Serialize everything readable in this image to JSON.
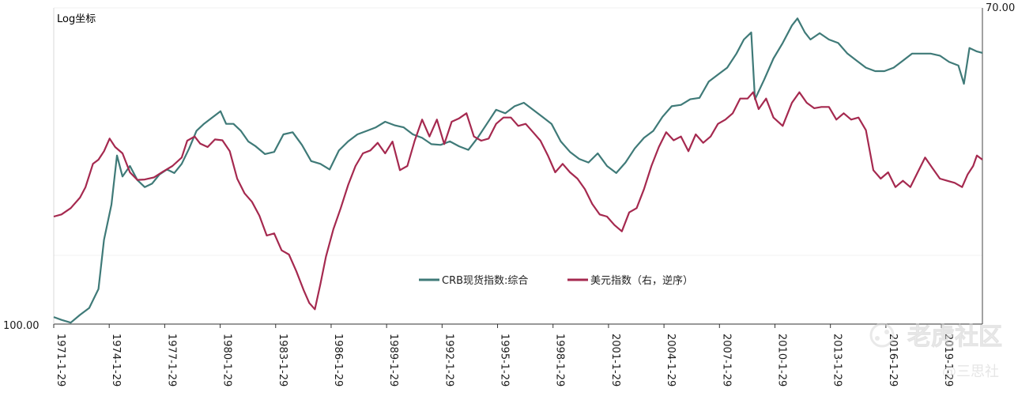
{
  "chart_data": {
    "type": "line",
    "scale_note": "Log坐标",
    "y_left": {
      "tick_labels": [
        "100.00"
      ]
    },
    "y_right": {
      "tick_labels": [
        "70.00"
      ],
      "inverted": true
    },
    "x_ticks": [
      "1971-1-29",
      "1974-1-29",
      "1977-1-29",
      "1980-1-29",
      "1983-1-29",
      "1986-1-29",
      "1989-1-29",
      "1992-1-29",
      "1995-1-29",
      "1998-1-29",
      "2001-1-29",
      "2004-1-29",
      "2007-1-29",
      "2010-1-29",
      "2013-1-29",
      "2016-1-29",
      "2019-1-29"
    ],
    "grid": true,
    "legend_position": "bottom-center",
    "series": [
      {
        "name": "CRB现货指数:综合",
        "axis": "left",
        "color": "#3f7a78",
        "x": [
          1971.08,
          1971.5,
          1972.0,
          1972.5,
          1973.0,
          1973.5,
          1973.8,
          1974.2,
          1974.5,
          1974.8,
          1975.2,
          1975.6,
          1976.0,
          1976.4,
          1976.8,
          1977.2,
          1977.6,
          1978.0,
          1978.4,
          1978.8,
          1979.2,
          1979.6,
          1980.1,
          1980.4,
          1980.8,
          1981.2,
          1981.6,
          1982.0,
          1982.5,
          1983.0,
          1983.5,
          1984.0,
          1984.5,
          1985.0,
          1985.5,
          1986.0,
          1986.5,
          1987.0,
          1987.5,
          1988.0,
          1988.5,
          1989.0,
          1989.5,
          1990.0,
          1990.5,
          1991.0,
          1991.5,
          1992.0,
          1992.5,
          1993.0,
          1993.5,
          1994.0,
          1994.5,
          1995.0,
          1995.5,
          1996.0,
          1996.5,
          1997.0,
          1997.5,
          1998.0,
          1998.5,
          1999.0,
          1999.5,
          2000.0,
          2000.5,
          2001.0,
          2001.5,
          2002.0,
          2002.5,
          2003.0,
          2003.5,
          2004.0,
          2004.5,
          2005.0,
          2005.5,
          2006.0,
          2006.5,
          2007.0,
          2007.5,
          2008.0,
          2008.4,
          2008.8,
          2009.0,
          2009.5,
          2010.0,
          2010.5,
          2011.0,
          2011.3,
          2011.7,
          2012.0,
          2012.5,
          2013.0,
          2013.5,
          2014.0,
          2014.5,
          2015.0,
          2015.5,
          2016.0,
          2016.5,
          2017.0,
          2017.5,
          2018.0,
          2018.5,
          2019.0,
          2019.5,
          2020.0,
          2020.3,
          2020.6,
          2021.0,
          2021.3
        ],
        "values": [
          101,
          100.6,
          100.2,
          101.3,
          102.3,
          105,
          112,
          117,
          124,
          121,
          122.5,
          120.5,
          119.5,
          120,
          121.3,
          122,
          121.5,
          122.8,
          125,
          127.5,
          128.5,
          129.3,
          130.3,
          128.5,
          128.5,
          127.5,
          126,
          125.3,
          124.2,
          124.5,
          127,
          127.3,
          125.5,
          123.2,
          122.8,
          122,
          124.7,
          126,
          127,
          127.5,
          128,
          128.8,
          128.3,
          128,
          127,
          126.5,
          125.6,
          125.5,
          126,
          125.3,
          124.8,
          126.5,
          128.5,
          130.5,
          130,
          131,
          131.5,
          130.5,
          129.5,
          128.5,
          126,
          124.5,
          123.5,
          123,
          124.3,
          122.5,
          121.5,
          123,
          125,
          126.5,
          127.5,
          129.5,
          131,
          131.2,
          132,
          132.2,
          134.5,
          135.5,
          136.5,
          138.5,
          140.5,
          141.5,
          132,
          134.8,
          137.8,
          140,
          142.5,
          143.5,
          141.5,
          140.5,
          141.4,
          140.5,
          140,
          138.5,
          137.5,
          136.5,
          136,
          136,
          136.5,
          137.5,
          138.5,
          138.5,
          138.5,
          138.2,
          137.3,
          136.8,
          134.2,
          139.3,
          138.8,
          138.6
        ]
      },
      {
        "name": "美元指数（右，逆序）",
        "axis": "right",
        "color": "#a5294f",
        "x": [
          1971.08,
          1971.5,
          1972.0,
          1972.5,
          1972.8,
          1973.2,
          1973.5,
          1973.8,
          1974.1,
          1974.4,
          1974.8,
          1975.2,
          1975.6,
          1976.0,
          1976.5,
          1977.0,
          1977.5,
          1978.0,
          1978.3,
          1978.7,
          1979.0,
          1979.4,
          1979.8,
          1980.2,
          1980.6,
          1981.0,
          1981.4,
          1981.8,
          1982.2,
          1982.6,
          1983.0,
          1983.4,
          1983.8,
          1984.2,
          1984.6,
          1984.9,
          1985.2,
          1985.5,
          1985.8,
          1986.2,
          1986.6,
          1987.0,
          1987.4,
          1987.8,
          1988.2,
          1988.6,
          1989.0,
          1989.4,
          1989.8,
          1990.2,
          1990.6,
          1991.0,
          1991.4,
          1991.8,
          1992.2,
          1992.6,
          1993.0,
          1993.4,
          1993.8,
          1994.2,
          1994.6,
          1995.0,
          1995.4,
          1995.8,
          1996.2,
          1996.6,
          1997.0,
          1997.4,
          1997.8,
          1998.2,
          1998.6,
          1999.0,
          1999.4,
          1999.8,
          2000.2,
          2000.6,
          2001.0,
          2001.4,
          2001.8,
          2002.2,
          2002.6,
          2003.0,
          2003.4,
          2003.8,
          2004.2,
          2004.6,
          2005.0,
          2005.4,
          2005.8,
          2006.2,
          2006.6,
          2007.0,
          2007.4,
          2007.8,
          2008.2,
          2008.6,
          2008.9,
          2009.2,
          2009.6,
          2010.0,
          2010.5,
          2011.0,
          2011.4,
          2011.8,
          2012.2,
          2012.6,
          2013.0,
          2013.4,
          2013.8,
          2014.2,
          2014.6,
          2015.0,
          2015.4,
          2015.8,
          2016.2,
          2016.6,
          2017.0,
          2017.4,
          2017.8,
          2018.2,
          2018.6,
          2019.0,
          2019.4,
          2019.8,
          2020.2,
          2020.5,
          2020.8,
          2021.0,
          2021.3
        ],
        "values": [
          119.5,
          119,
          117.5,
          115,
          112.5,
          107,
          106,
          104,
          101,
          103,
          104.5,
          109,
          110.8,
          110.7,
          110.2,
          108.8,
          107.5,
          105.5,
          101.5,
          100.5,
          102.2,
          103,
          101.2,
          101.4,
          104,
          110.5,
          114,
          116,
          119.3,
          124,
          123.5,
          127.5,
          128.5,
          132.5,
          137,
          140,
          141.5,
          135.5,
          129,
          122.5,
          117.5,
          112,
          107.5,
          104.5,
          103.8,
          102,
          104.5,
          101.7,
          108.5,
          107.5,
          101.5,
          96.5,
          100.5,
          96.5,
          102.3,
          97,
          96.2,
          95,
          100.5,
          101.5,
          101,
          97.5,
          96,
          96,
          98,
          97.5,
          99.5,
          101.5,
          105,
          109,
          107,
          109,
          110.5,
          113,
          116.5,
          119,
          119.5,
          121.5,
          123,
          118.5,
          117.5,
          113,
          107.5,
          103,
          99.5,
          101.4,
          100.5,
          104,
          100,
          102,
          100.5,
          97.5,
          96.5,
          95,
          91.5,
          91.5,
          90,
          94,
          91.5,
          96,
          98,
          92.5,
          90,
          92.5,
          93.8,
          93.5,
          93.5,
          96.5,
          95,
          96.5,
          96,
          99,
          108.5,
          110.5,
          109,
          112.5,
          111,
          112.5,
          109,
          105.5,
          108,
          110.5,
          111,
          111.5,
          112.5,
          109.5,
          107.5,
          105,
          106
        ]
      }
    ]
  },
  "watermark": {
    "main": "老虎社区",
    "sub": "@三思社"
  }
}
